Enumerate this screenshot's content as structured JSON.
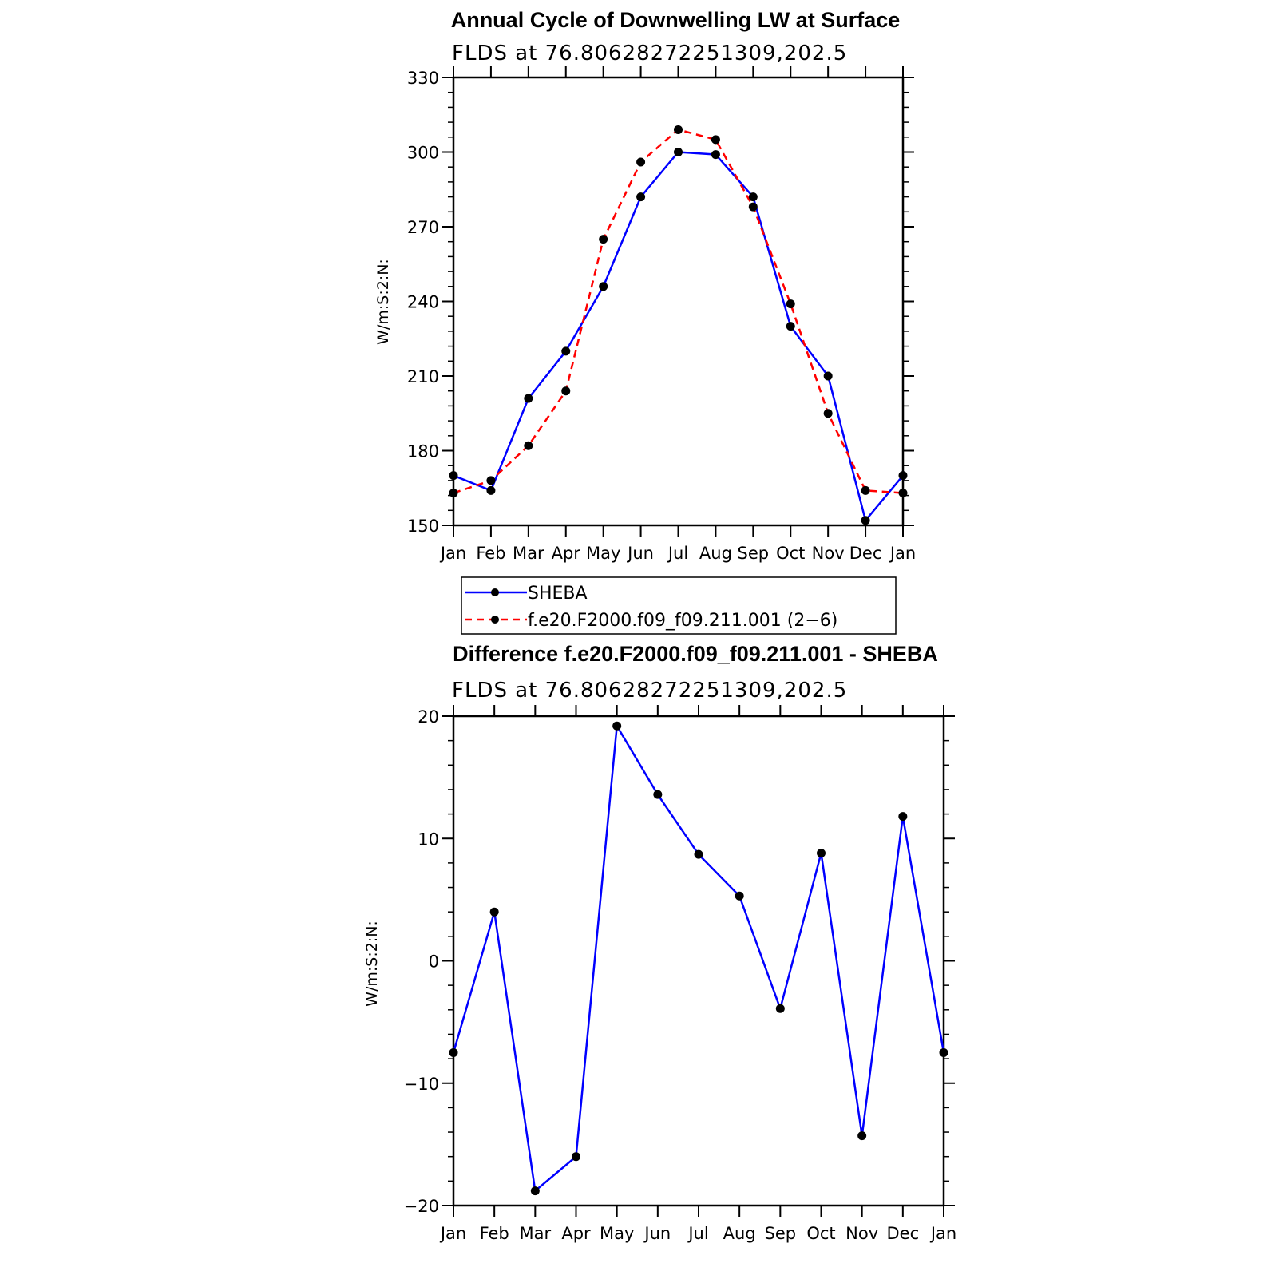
{
  "chart_data": [
    {
      "type": "line",
      "title": "Annual Cycle of Downwelling LW at Surface",
      "subtitle": "FLDS at 76.80628272251309,202.5",
      "xlabel": "",
      "ylabel": "W/m:S:2:N:",
      "categories": [
        "Jan",
        "Feb",
        "Mar",
        "Apr",
        "May",
        "Jun",
        "Jul",
        "Aug",
        "Sep",
        "Oct",
        "Nov",
        "Dec",
        "Jan"
      ],
      "ylim": [
        150,
        330
      ],
      "yticks": [
        150,
        180,
        210,
        240,
        270,
        300,
        330
      ],
      "series": [
        {
          "name": "SHEBA",
          "color": "#0000ff",
          "dash": "solid",
          "values": [
            170,
            164,
            201,
            220,
            246,
            282,
            300,
            299,
            282,
            230,
            210,
            152,
            170
          ]
        },
        {
          "name": "f.e20.F2000.f09_f09.211.001 (2−6)",
          "color": "#ff0000",
          "dash": "dashed",
          "values": [
            163,
            168,
            182,
            204,
            265,
            296,
            309,
            305,
            278,
            239,
            195,
            164,
            163
          ]
        }
      ],
      "legend_position": "bottom"
    },
    {
      "type": "line",
      "title": "Difference f.e20.F2000.f09_f09.211.001 - SHEBA",
      "subtitle": "FLDS at 76.80628272251309,202.5",
      "xlabel": "",
      "ylabel": "W/m:S:2:N:",
      "categories": [
        "Jan",
        "Feb",
        "Mar",
        "Apr",
        "May",
        "Jun",
        "Jul",
        "Aug",
        "Sep",
        "Oct",
        "Nov",
        "Dec",
        "Jan"
      ],
      "ylim": [
        -20,
        20
      ],
      "yticks": [
        -20,
        -10,
        0,
        10,
        20
      ],
      "ytick_labels": [
        "−20",
        "−10",
        "0",
        "10",
        "20"
      ],
      "series": [
        {
          "color": "#0000ff",
          "dash": "solid",
          "values": [
            -7.5,
            4,
            -18.8,
            -16,
            19.2,
            13.6,
            8.7,
            5.3,
            -3.9,
            8.8,
            -14.3,
            11.8,
            -7.5
          ]
        }
      ]
    }
  ]
}
